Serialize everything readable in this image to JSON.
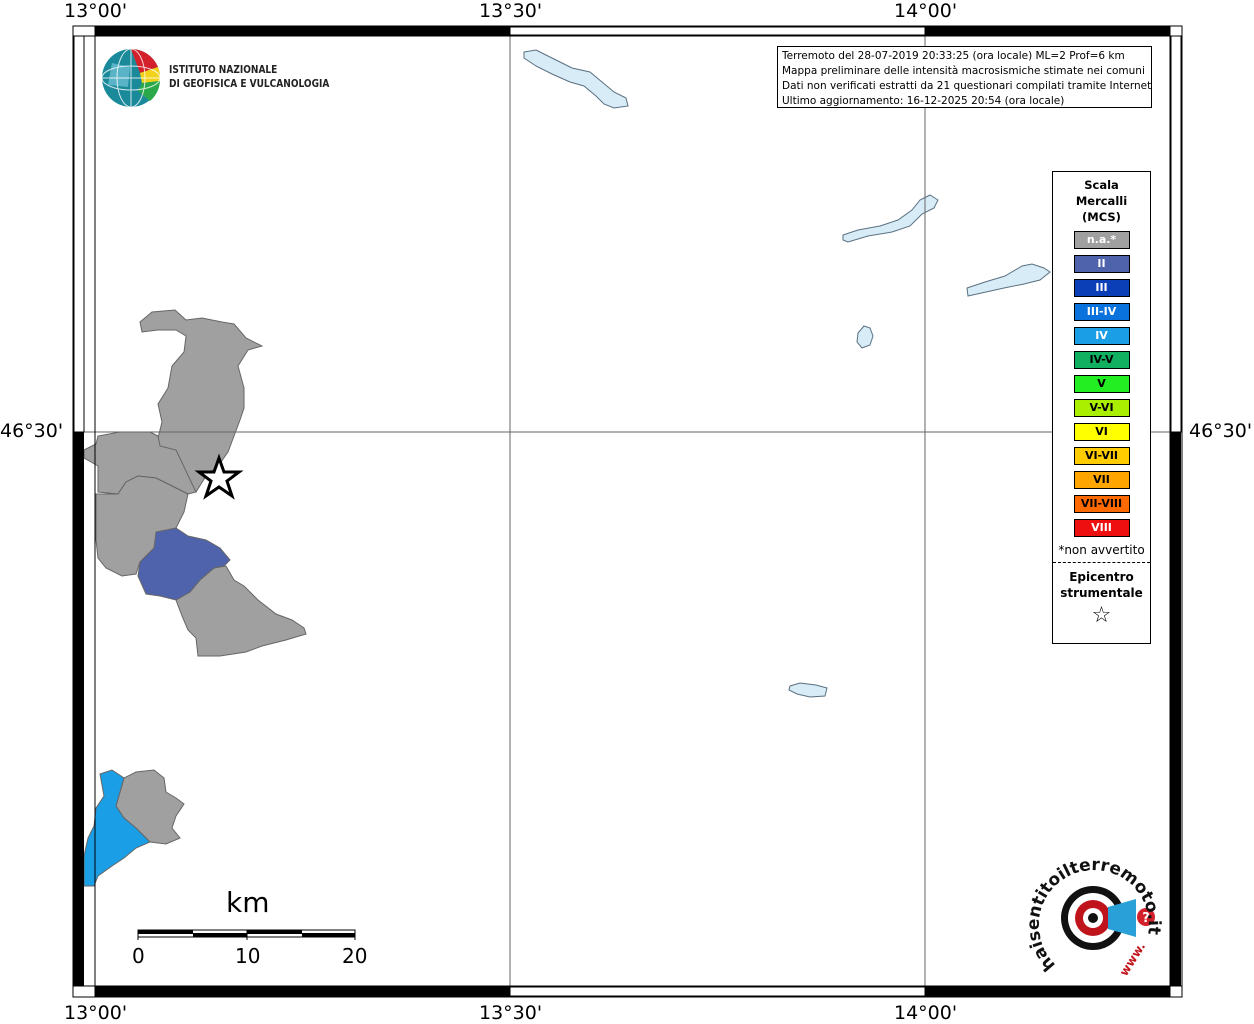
{
  "map": {
    "longitude_labels": [
      "13°00'",
      "13°30'",
      "14°00'"
    ],
    "latitude_label": "46°30'"
  },
  "info_box": {
    "lines": [
      "Terremoto del 28-07-2019 20:33:25 (ora locale) ML=2 Prof=6 km",
      "Mappa preliminare delle intensità macrosismiche stimate nei comuni",
      "Dati non verificati estratti da 21 questionari compilati tramite Internet.",
      "Ultimo aggiornamento: 16-12-2025 20:54 (ora locale)"
    ]
  },
  "logo_ingv": {
    "line1": "ISTITUTO NAZIONALE",
    "line2": "DI GEOFISICA E VULCANOLOGIA"
  },
  "legend": {
    "title_line1": "Scala",
    "title_line2": "Mercalli",
    "title_line3": "(MCS)",
    "items": [
      {
        "label": "n.a.*",
        "color": "#a0a0a0"
      },
      {
        "label": "II",
        "color": "#4f63ad"
      },
      {
        "label": "III",
        "color": "#0a3fb8"
      },
      {
        "label": "III-IV",
        "color": "#0a72dc"
      },
      {
        "label": "IV",
        "color": "#1a9ee6"
      },
      {
        "label": "IV-V",
        "color": "#10b060"
      },
      {
        "label": "V",
        "color": "#22ee22"
      },
      {
        "label": "V-VI",
        "color": "#aaee00"
      },
      {
        "label": "VI",
        "color": "#ffff00"
      },
      {
        "label": "VI-VII",
        "color": "#ffcc00"
      },
      {
        "label": "VII",
        "color": "#ffa500"
      },
      {
        "label": "VII-VIII",
        "color": "#ff6a00"
      },
      {
        "label": "VIII",
        "color": "#ee1010"
      }
    ],
    "note": "*non avvertito",
    "epicenter_line1": "Epicentro",
    "epicenter_line2": "strumentale",
    "epicenter_symbol": "☆"
  },
  "scale_bar": {
    "unit": "km",
    "ticks": [
      "0",
      "10",
      "20"
    ]
  },
  "logo_hsit": {
    "text": "haisentitoilterremoto.it",
    "prefix": "www.",
    "mark": "?"
  },
  "colors": {
    "not_felt": "#a0a0a0",
    "intensity_II": "#4f63ad",
    "intensity_IV": "#1a9ee6",
    "lake": "#d8ecf8",
    "lake_outline": "#5a7080"
  }
}
